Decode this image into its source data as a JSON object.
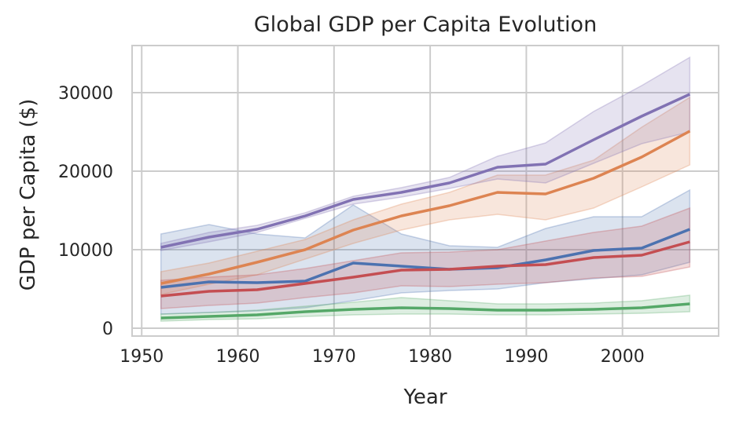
{
  "chart_data": {
    "type": "line",
    "title": "Global GDP per Capita Evolution",
    "xlabel": "Year",
    "ylabel": "GDP per Capita ($)",
    "xlim": [
      1949,
      2010
    ],
    "ylim": [
      -1000,
      36000
    ],
    "xticks": [
      1950,
      1960,
      1970,
      1980,
      1990,
      2000
    ],
    "yticks": [
      0,
      10000,
      20000,
      30000
    ],
    "grid": true,
    "legend": "none",
    "x": [
      1952,
      1957,
      1962,
      1967,
      1972,
      1977,
      1982,
      1987,
      1992,
      1997,
      2002,
      2007
    ],
    "series": [
      {
        "color": "#4c72b0",
        "values": [
          5200,
          5900,
          5800,
          6000,
          8300,
          7900,
          7500,
          7700,
          8700,
          9900,
          10200,
          12600
        ],
        "lower": [
          1800,
          2000,
          2200,
          2600,
          3500,
          4500,
          4800,
          5000,
          5800,
          6300,
          6800,
          8400
        ],
        "upper": [
          12000,
          13200,
          12000,
          11500,
          15700,
          12000,
          10500,
          10300,
          12700,
          14200,
          14200,
          17600
        ]
      },
      {
        "color": "#dd8452",
        "values": [
          5700,
          6900,
          8400,
          10000,
          12500,
          14300,
          15600,
          17300,
          17100,
          19100,
          21800,
          25100
        ],
        "lower": [
          4300,
          5600,
          6800,
          8800,
          10800,
          12500,
          13800,
          14500,
          13800,
          15300,
          18000,
          20800
        ],
        "upper": [
          7200,
          8300,
          9800,
          11300,
          13800,
          15800,
          17300,
          19500,
          19500,
          21400,
          25600,
          29400
        ]
      },
      {
        "color": "#55a868",
        "values": [
          1300,
          1500,
          1700,
          2100,
          2400,
          2600,
          2500,
          2300,
          2300,
          2400,
          2600,
          3100
        ],
        "lower": [
          900,
          1100,
          1200,
          1500,
          1700,
          1800,
          1800,
          1700,
          1700,
          1800,
          1900,
          2100
        ],
        "upper": [
          1800,
          2000,
          2300,
          2800,
          3300,
          3900,
          3500,
          3100,
          3100,
          3200,
          3500,
          4200
        ]
      },
      {
        "color": "#c44e52",
        "values": [
          4100,
          4700,
          4900,
          5700,
          6500,
          7400,
          7500,
          7900,
          8100,
          9000,
          9300,
          11000
        ],
        "lower": [
          2500,
          2900,
          3200,
          3900,
          4500,
          5400,
          5300,
          5600,
          5800,
          6400,
          6600,
          7800
        ],
        "upper": [
          6100,
          6500,
          6800,
          7600,
          8600,
          9600,
          9700,
          10000,
          11100,
          12200,
          13000,
          15300
        ]
      },
      {
        "color": "#8172b3",
        "values": [
          10300,
          11600,
          12600,
          14300,
          16400,
          17300,
          18500,
          20500,
          20900,
          24000,
          27000,
          29800
        ],
        "lower": [
          9900,
          11000,
          12200,
          14000,
          15800,
          16700,
          17800,
          19000,
          18500,
          21000,
          23500,
          25000
        ],
        "upper": [
          10800,
          12200,
          13100,
          14700,
          16800,
          17900,
          19200,
          21900,
          23600,
          27600,
          30900,
          34500
        ]
      }
    ]
  }
}
